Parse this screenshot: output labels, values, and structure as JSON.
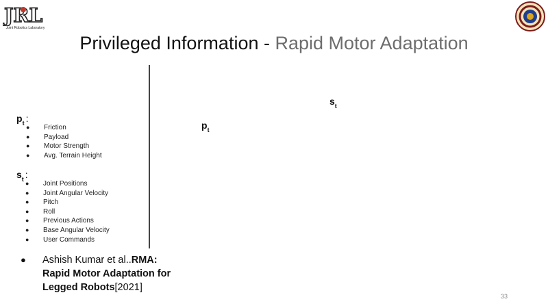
{
  "logo": {
    "caption": "Joint Robotics Laboratory"
  },
  "title": {
    "main": "Privileged Information - ",
    "sub": "Rapid Motor Adaptation"
  },
  "p_section": {
    "var": "p",
    "sub": "t",
    "colon": ":",
    "items": [
      "Friction",
      "Payload",
      "Motor Strength",
      "Avg. Terrain Height"
    ]
  },
  "s_section": {
    "var": "s",
    "sub": "t",
    "colon": ":",
    "items": [
      "Joint Positions",
      "Joint Angular Velocity",
      "Pitch",
      "Roll",
      "Previous Actions",
      "Base Angular Velocity",
      "User Commands"
    ]
  },
  "diagram": {
    "s_label": "s",
    "s_sub": "t",
    "p_label": "p",
    "p_sub": "t"
  },
  "reference": {
    "authors": "Ashish Kumar et al..",
    "paper_title": "RMA: Rapid Motor Adaptation for Legged Robots",
    "year": "[2021]"
  },
  "page_number": "33",
  "colors": {
    "title": "#111111",
    "subtitle": "#6d6d6d",
    "seal_outer": "#7a1c1c",
    "seal_inner": "#1f3f8c"
  }
}
